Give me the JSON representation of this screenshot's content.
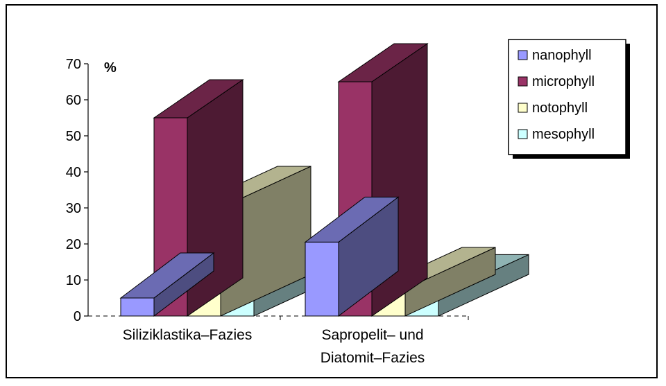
{
  "chart_data": {
    "type": "bar",
    "style": "3d-clustered-column",
    "categories": [
      [
        "Siliziklastika–Fazies"
      ],
      [
        "Sapropelit– und",
        "Diatomit–Fazies"
      ]
    ],
    "series": [
      {
        "name": "nanophyll",
        "values": [
          5,
          20.5
        ],
        "color": "#9999ff"
      },
      {
        "name": "microphyll",
        "values": [
          55,
          65
        ],
        "color": "#993366"
      },
      {
        "name": "notophyll",
        "values": [
          30,
          7.5
        ],
        "color": "#ffffcc"
      },
      {
        "name": "mesophyll",
        "values": [
          9,
          5.5
        ],
        "color": "#ccffff"
      }
    ],
    "yunit": "%",
    "ylim": [
      0,
      70
    ],
    "yticks": [
      0,
      10,
      20,
      30,
      40,
      50,
      60,
      70
    ],
    "grid": false,
    "legend": "top-right"
  }
}
